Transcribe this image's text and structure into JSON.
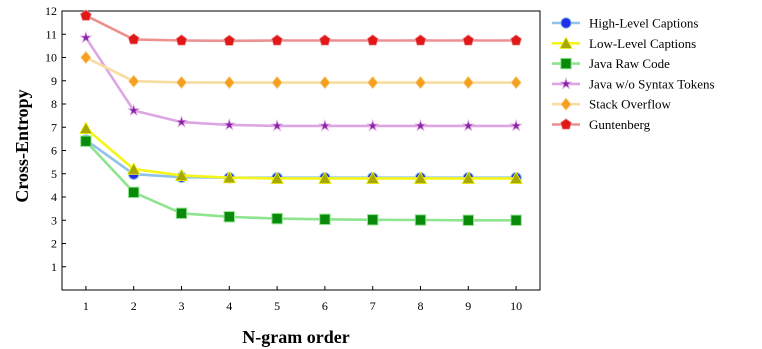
{
  "chart_data": {
    "type": "line",
    "title": "",
    "xlabel": "N-gram order",
    "ylabel": "Cross-Entropy",
    "x": [
      1,
      2,
      3,
      4,
      5,
      6,
      7,
      8,
      9,
      10
    ],
    "xlim": [
      0.5,
      10.5
    ],
    "ylim": [
      0,
      12
    ],
    "yticks": [
      1,
      2,
      3,
      4,
      5,
      6,
      7,
      8,
      9,
      10,
      11,
      12
    ],
    "grid": false,
    "legend_position": "right",
    "series": [
      {
        "name": "High-Level Captions",
        "color": "#8fc1ea",
        "marker_color": "#1f2ee8",
        "marker": "circle",
        "values": [
          6.45,
          4.98,
          4.85,
          4.83,
          4.83,
          4.83,
          4.83,
          4.83,
          4.83,
          4.83
        ]
      },
      {
        "name": "Low-Level Captions",
        "color": "#f5f51a",
        "marker_color": "#a8a800",
        "marker": "triangle",
        "values": [
          6.95,
          5.2,
          4.93,
          4.83,
          4.8,
          4.8,
          4.8,
          4.8,
          4.8,
          4.8
        ]
      },
      {
        "name": "Java Raw Code",
        "color": "#8fe48f",
        "marker_color": "#0a8a0a",
        "marker": "square",
        "values": [
          6.4,
          4.2,
          3.3,
          3.15,
          3.07,
          3.04,
          3.02,
          3.01,
          3.0,
          3.0
        ]
      },
      {
        "name": "Java w/o Syntax Tokens",
        "color": "#dda6e3",
        "marker_color": "#8a22a8",
        "marker": "star",
        "values": [
          10.85,
          7.72,
          7.22,
          7.1,
          7.06,
          7.06,
          7.06,
          7.06,
          7.06,
          7.06
        ]
      },
      {
        "name": "Stack Overflow",
        "color": "#f8dca0",
        "marker_color": "#f5a020",
        "marker": "diamond",
        "values": [
          10.0,
          8.98,
          8.93,
          8.92,
          8.92,
          8.92,
          8.92,
          8.92,
          8.92,
          8.92
        ]
      },
      {
        "name": "Guntenberg",
        "color": "#ec9090",
        "marker_color": "#e01818",
        "marker": "pentagon",
        "values": [
          11.8,
          10.78,
          10.73,
          10.72,
          10.73,
          10.73,
          10.73,
          10.73,
          10.73,
          10.73
        ]
      }
    ]
  }
}
